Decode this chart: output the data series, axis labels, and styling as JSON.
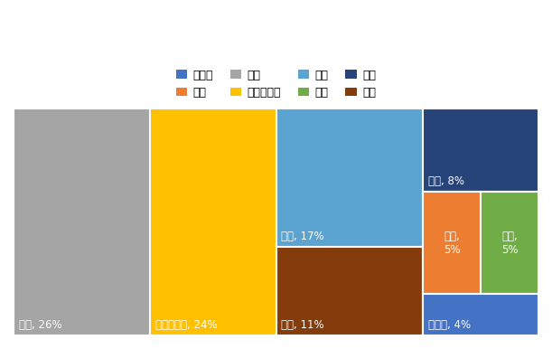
{
  "title": "",
  "regions": [
    "関東",
    "東海・中部",
    "近畿",
    "九州",
    "四国",
    "東北",
    "中国",
    "北海道"
  ],
  "values": [
    26,
    24,
    17,
    11,
    8,
    5,
    5,
    4
  ],
  "colors": {
    "北海道": "#4472C4",
    "東北": "#ED7D31",
    "関東": "#A5A5A5",
    "東海・中部": "#FFC000",
    "近畿": "#5BA3D0",
    "中国": "#70AD47",
    "四国": "#264478",
    "九州": "#843C0C"
  },
  "legend_order": [
    "北海道",
    "東北",
    "関東",
    "東海・中部",
    "近畿",
    "中国",
    "四国",
    "九州"
  ],
  "legend_colors": {
    "北海道": "#4472C4",
    "東北": "#ED7D31",
    "関東": "#A5A5A5",
    "東海・中部": "#FFC000",
    "近畿": "#5BA3D0",
    "中国": "#70AD47",
    "四国": "#264478",
    "九州": "#843C0C"
  },
  "bg_color": "#FFFFFF",
  "text_color": "#FFFFFF",
  "font_size": 10,
  "label_font_size": 9,
  "fig_width": 6.11,
  "fig_height": 3.86,
  "dpi": 100
}
